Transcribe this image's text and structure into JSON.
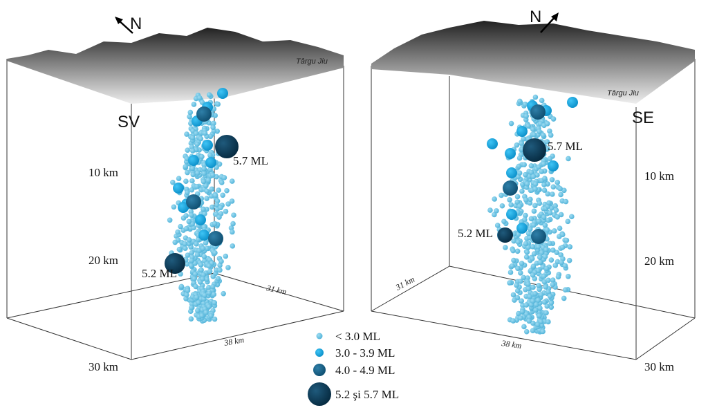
{
  "panels": [
    {
      "side": "SV",
      "north": "N",
      "town": "Târgu Jiu",
      "depths": [
        "10 km",
        "20 km",
        "30 km"
      ],
      "edges": [
        "31 km",
        "38 km"
      ],
      "events": [
        "5.7 ML",
        "5.2 ML"
      ]
    },
    {
      "side": "SE",
      "north": "N",
      "town": "Târgu Jiu",
      "depths": [
        "10 km",
        "20 km",
        "30 km"
      ],
      "edges": [
        "31 km",
        "38 km"
      ],
      "events": [
        "5.7 ML",
        "5.2 ML"
      ]
    }
  ],
  "legend": [
    "< 3.0 ML",
    "3.0 - 3.9 ML",
    "4.0 - 4.9 ML",
    "5.2 şi 5.7 ML"
  ]
}
